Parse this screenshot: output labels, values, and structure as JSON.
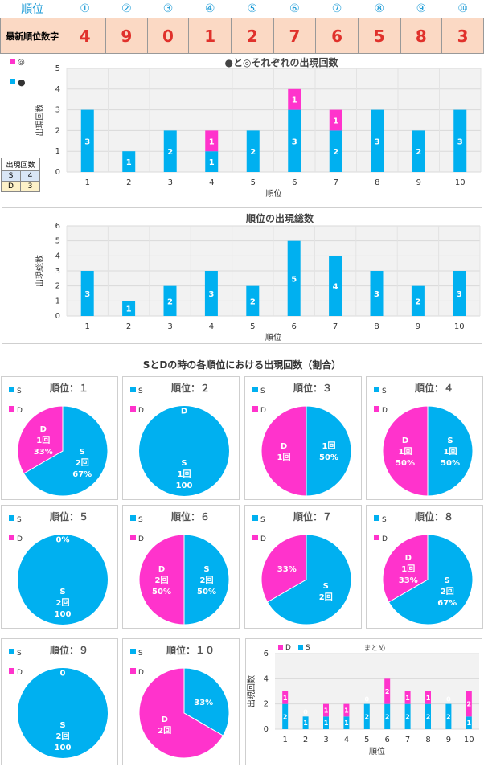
{
  "header": {
    "rank_label": "順位",
    "rank_symbols": [
      "①",
      "②",
      "③",
      "④",
      "⑤",
      "⑥",
      "⑦",
      "⑧",
      "⑨",
      "⑩"
    ],
    "latest_label": "最新順位数字",
    "latest_digits": [
      "4",
      "9",
      "0",
      "1",
      "2",
      "7",
      "6",
      "5",
      "8",
      "3"
    ]
  },
  "side_table": {
    "title": "出現回数",
    "rows": [
      [
        "S",
        "4"
      ],
      [
        "D",
        "3"
      ]
    ]
  },
  "colors": {
    "cyan": "#00b0f0",
    "magenta": "#ff33cc",
    "header_fill": "#fbd9c4"
  },
  "chart_data": [
    {
      "type": "bar",
      "stacked": true,
      "title": "●と◎それぞれの出現回数",
      "xlabel": "順位",
      "ylabel": "出現回数",
      "ylim": [
        0,
        5
      ],
      "categories": [
        "1",
        "2",
        "3",
        "4",
        "5",
        "6",
        "7",
        "8",
        "9",
        "10"
      ],
      "legend": [
        "◎",
        "●"
      ],
      "series": [
        {
          "name": "●",
          "color": "#00b0f0",
          "values": [
            3,
            1,
            2,
            1,
            2,
            3,
            2,
            3,
            2,
            3
          ]
        },
        {
          "name": "◎",
          "color": "#ff33cc",
          "values": [
            0,
            0,
            0,
            1,
            0,
            1,
            1,
            0,
            0,
            0
          ]
        }
      ]
    },
    {
      "type": "bar",
      "title": "順位の出現総数",
      "xlabel": "順位",
      "ylabel": "出現総数",
      "ylim": [
        0,
        6
      ],
      "categories": [
        "1",
        "2",
        "3",
        "4",
        "5",
        "6",
        "7",
        "8",
        "9",
        "10"
      ],
      "series": [
        {
          "color": "#00b0f0",
          "values": [
            3,
            1,
            2,
            3,
            2,
            5,
            4,
            3,
            2,
            3
          ]
        }
      ]
    },
    {
      "type": "pie",
      "section_title": "SとDの時の各順位における出現回数（割合）",
      "legend": [
        "S",
        "D"
      ],
      "pies": [
        {
          "title": "順位：１",
          "slices": [
            {
              "name": "S",
              "count": "2回",
              "pct": "67%",
              "value": 2
            },
            {
              "name": "D",
              "count": "1回",
              "pct": "33%",
              "value": 1
            }
          ]
        },
        {
          "title": "順位：２",
          "slices": [
            {
              "name": "S",
              "count": "1回",
              "pct": "100",
              "value": 1
            },
            {
              "name": "D",
              "count": "",
              "pct": "",
              "value": 0
            }
          ]
        },
        {
          "title": "順位：３",
          "slices": [
            {
              "name": "",
              "count": "1回",
              "pct": "50%",
              "value": 1
            },
            {
              "name": "D",
              "count": "1回",
              "pct": "",
              "value": 1
            }
          ]
        },
        {
          "title": "順位：４",
          "slices": [
            {
              "name": "S",
              "count": "1回",
              "pct": "50%",
              "value": 1
            },
            {
              "name": "D",
              "count": "1回",
              "pct": "50%",
              "value": 1
            }
          ]
        },
        {
          "title": "順位：５",
          "slices": [
            {
              "name": "S",
              "count": "2回",
              "pct": "100",
              "value": 2
            },
            {
              "name": "",
              "count": "",
              "pct": "0%",
              "value": 0
            }
          ]
        },
        {
          "title": "順位：６",
          "slices": [
            {
              "name": "S",
              "count": "2回",
              "pct": "50%",
              "value": 2
            },
            {
              "name": "D",
              "count": "2回",
              "pct": "50%",
              "value": 2
            }
          ]
        },
        {
          "title": "順位：７",
          "slices": [
            {
              "name": "S",
              "count": "2回",
              "pct": "",
              "value": 2
            },
            {
              "name": "",
              "count": "",
              "pct": "33%",
              "value": 1
            }
          ]
        },
        {
          "title": "順位：８",
          "slices": [
            {
              "name": "S",
              "count": "2回",
              "pct": "67%",
              "value": 2
            },
            {
              "name": "D",
              "count": "1回",
              "pct": "33%",
              "value": 1
            }
          ]
        },
        {
          "title": "順位：９",
          "slices": [
            {
              "name": "S",
              "count": "2回",
              "pct": "100",
              "value": 2
            },
            {
              "name": "",
              "count": "",
              "pct": "0",
              "value": 0
            }
          ]
        },
        {
          "title": "順位：１０",
          "slices": [
            {
              "name": "",
              "count": "",
              "pct": "33%",
              "value": 1
            },
            {
              "name": "D",
              "count": "2回",
              "pct": "",
              "value": 2
            }
          ]
        }
      ]
    },
    {
      "type": "bar",
      "stacked": true,
      "title": "まとめ",
      "xlabel": "順位",
      "ylabel": "出現回数",
      "ylim": [
        0,
        6
      ],
      "legend": [
        "D",
        "S"
      ],
      "categories": [
        "1",
        "2",
        "3",
        "4",
        "5",
        "6",
        "7",
        "8",
        "9",
        "10"
      ],
      "series": [
        {
          "name": "S",
          "color": "#00b0f0",
          "values": [
            2,
            1,
            1,
            1,
            2,
            2,
            2,
            2,
            2,
            1
          ]
        },
        {
          "name": "D",
          "color": "#ff33cc",
          "values": [
            1,
            0,
            1,
            1,
            0,
            2,
            1,
            1,
            0,
            2
          ]
        }
      ],
      "s_labels": [
        "2",
        "1",
        "1",
        "1",
        "2",
        "2",
        "2",
        "2",
        "2",
        "1"
      ],
      "d_labels": [
        "1",
        "0",
        "1",
        "1",
        "0",
        "2",
        "1",
        "1",
        "0",
        "2"
      ]
    }
  ]
}
